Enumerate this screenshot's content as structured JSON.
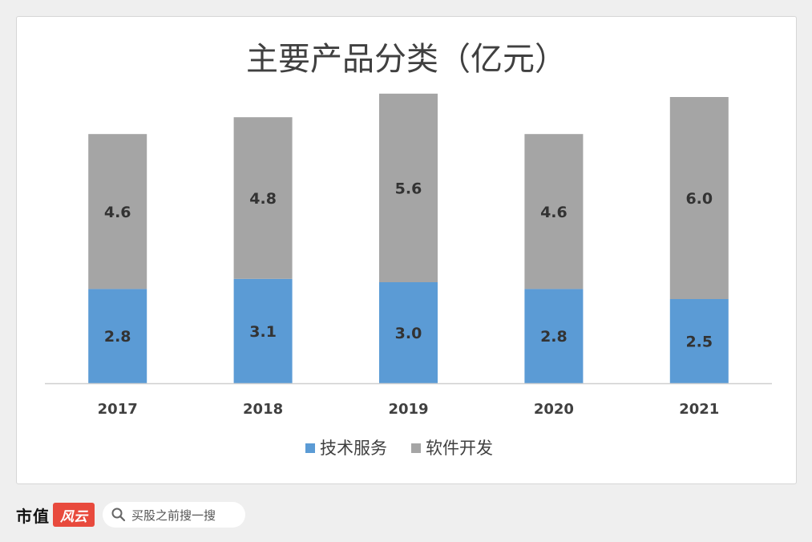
{
  "chart_data": {
    "type": "bar",
    "stacked": true,
    "title": "主要产品分类（亿元）",
    "categories": [
      "2017",
      "2018",
      "2019",
      "2020",
      "2021"
    ],
    "series": [
      {
        "name": "技术服务",
        "values": [
          2.8,
          3.1,
          3.0,
          2.8,
          2.5
        ],
        "color": "#5b9bd5",
        "labels": [
          "2.8",
          "3.1",
          "3.0",
          "2.8",
          "2.5"
        ]
      },
      {
        "name": "软件开发",
        "values": [
          4.6,
          4.8,
          5.6,
          4.6,
          6.0
        ],
        "color": "#a5a5a5",
        "labels": [
          "4.6",
          "4.8",
          "5.6",
          "4.6",
          "6.0"
        ]
      }
    ],
    "ylim": [
      0,
      10
    ],
    "grid": false,
    "legend": "bottom"
  },
  "footer": {
    "brand": "市值",
    "logo": "风云",
    "search_placeholder": "买股之前搜一搜"
  }
}
